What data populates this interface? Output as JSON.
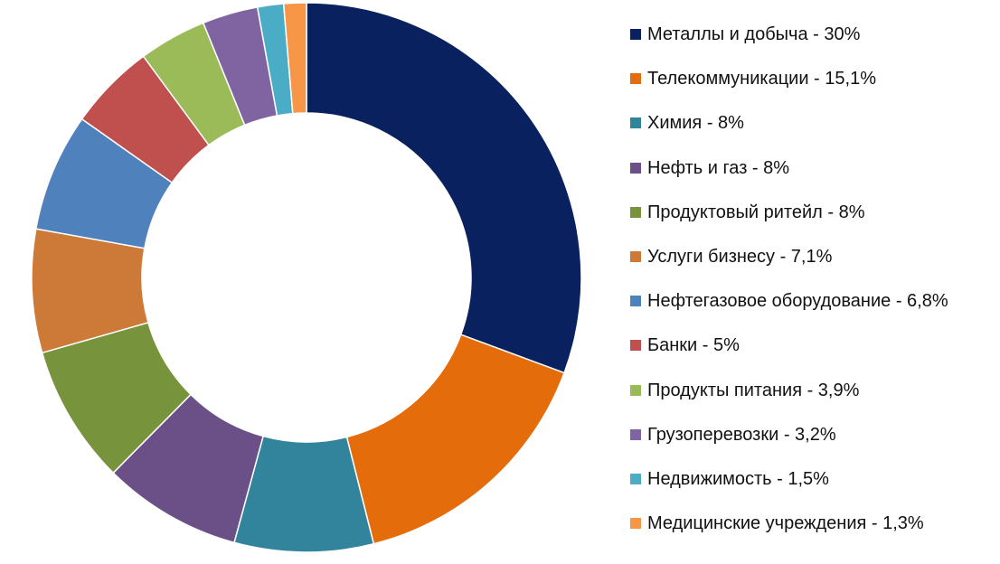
{
  "chart_data": {
    "type": "pie",
    "variant": "donut",
    "title": "",
    "legend_position": "right",
    "categories": [
      "Металлы и добыча",
      "Телекоммуникации",
      "Химия",
      "Нефть и газ",
      "Продуктовый ритейл",
      "Услуги бизнесу",
      "Нефтегазовое оборудование",
      "Банки",
      "Продукты питания",
      "Грузоперевозки",
      "Недвижимость",
      "Медицинские учреждения"
    ],
    "values": [
      30,
      15.1,
      8,
      8,
      8,
      7.1,
      6.8,
      5,
      3.9,
      3.2,
      1.5,
      1.3
    ],
    "legend_labels": [
      "Металлы и добыча - 30%",
      "Телекоммуникации - 15,1%",
      "Химия - 8%",
      "Нефть и газ - 8%",
      "Продуктовый ритейл - 8%",
      "Услуги бизнесу - 7,1%",
      "Нефтегазовое оборудование - 6,8%",
      "Банки - 5%",
      "Продукты питания - 3,9%",
      "Грузоперевозки - 3,2%",
      "Недвижимость - 1,5%",
      "Медицинские учреждения - 1,3%"
    ],
    "colors": [
      "#0A215F",
      "#E46C0A",
      "#31849B",
      "#6A5086",
      "#77933C",
      "#CD7A38",
      "#4F81BD",
      "#C0504D",
      "#9BBB59",
      "#8064A2",
      "#4BACC6",
      "#F79646"
    ]
  }
}
